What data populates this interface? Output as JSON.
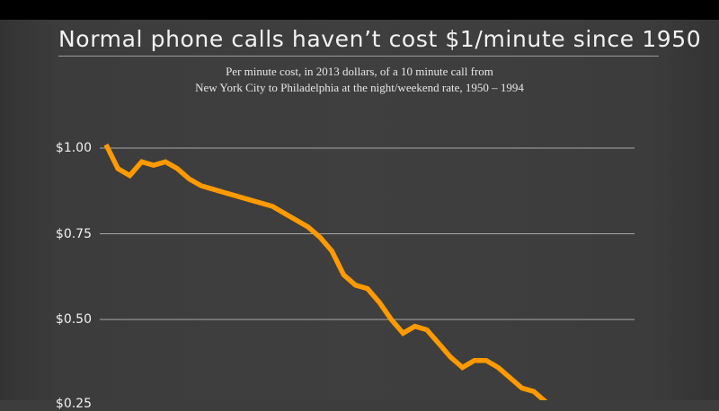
{
  "title": "Normal phone calls haven’t cost $1/minute since 1950",
  "subtitle": {
    "line1": "Per minute cost, in 2013 dollars, of a 10 minute call from",
    "line2": "New York City to Philadelphia at the night/weekend rate, 1950 – 1994"
  },
  "y_axis": {
    "ticks": [
      {
        "label": "$1.00",
        "value": 1.0
      },
      {
        "label": "$0.75",
        "value": 0.75
      },
      {
        "label": "$0.50",
        "value": 0.5
      }
    ]
  },
  "colors": {
    "background": "#3d3d3d",
    "line": "#ff9a00",
    "grid": "#a8a8a8",
    "text": "#f0f0f0"
  },
  "chart_data": {
    "type": "line",
    "title": "Normal phone calls haven’t cost $1/minute since 1950",
    "subtitle": "Per minute cost, in 2013 dollars, of a 10 minute call from New York City to Philadelphia at the night/weekend rate, 1950 – 1994",
    "xlabel": "",
    "ylabel": "",
    "x_range": [
      1950,
      1994
    ],
    "ylim": [
      0.25,
      1.0
    ],
    "y_ticks": [
      "$1.00",
      "$0.75",
      "$0.50"
    ],
    "grid": true,
    "legend": null,
    "note": "Image cropped at bottom; values visible through ~1986",
    "series": [
      {
        "name": "Per minute cost (2013 $)",
        "x": [
          1950,
          1951,
          1952,
          1953,
          1954,
          1955,
          1956,
          1957,
          1958,
          1959,
          1960,
          1961,
          1962,
          1963,
          1964,
          1965,
          1966,
          1967,
          1968,
          1969,
          1970,
          1971,
          1972,
          1973,
          1974,
          1975,
          1976,
          1977,
          1978,
          1979,
          1980,
          1981,
          1982,
          1983,
          1984,
          1985,
          1986,
          1987
        ],
        "values": [
          1.01,
          0.94,
          0.92,
          0.96,
          0.95,
          0.96,
          0.94,
          0.91,
          0.89,
          0.88,
          0.87,
          0.86,
          0.85,
          0.84,
          0.83,
          0.81,
          0.79,
          0.77,
          0.74,
          0.7,
          0.63,
          0.6,
          0.59,
          0.55,
          0.5,
          0.46,
          0.48,
          0.47,
          0.43,
          0.39,
          0.36,
          0.38,
          0.38,
          0.36,
          0.33,
          0.3,
          0.29,
          0.26
        ]
      }
    ]
  }
}
